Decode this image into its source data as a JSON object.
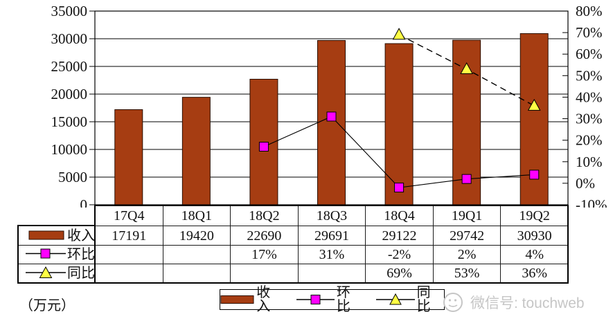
{
  "chart_data": {
    "type": "bar",
    "subtype": "bar-line-combo",
    "categories": [
      "17Q4",
      "18Q1",
      "18Q2",
      "18Q3",
      "18Q4",
      "19Q1",
      "19Q2"
    ],
    "series": [
      {
        "name": "收入",
        "type": "bar",
        "axis": "left",
        "color": "#A63D12",
        "values": [
          17191,
          19420,
          22690,
          29691,
          29122,
          29742,
          30930
        ]
      },
      {
        "name": "环比",
        "type": "line",
        "axis": "right",
        "marker": "square",
        "line_style": "solid",
        "color": "#FF00FF",
        "values": [
          null,
          null,
          17,
          31,
          -2,
          2,
          4
        ]
      },
      {
        "name": "同比",
        "type": "line",
        "axis": "right",
        "marker": "triangle",
        "line_style": "dashed",
        "color": "#FFFF44",
        "values": [
          null,
          null,
          null,
          null,
          69,
          53,
          36
        ]
      }
    ],
    "left_axis": {
      "min": 0,
      "max": 35000,
      "step": 5000,
      "tick_labels": [
        "35000",
        "30000",
        "25000",
        "20000",
        "15000",
        "10000",
        "5000",
        "0"
      ]
    },
    "right_axis": {
      "min": -10,
      "max": 80,
      "step": 10,
      "tick_labels": [
        "80%",
        "70%",
        "60%",
        "50%",
        "40%",
        "30%",
        "20%",
        "10%",
        "0%",
        "-10%"
      ]
    },
    "grid": "horizontal",
    "legend_position": "bottom",
    "unit_label": "（万元）",
    "title": ""
  },
  "table": {
    "header": [
      "17Q4",
      "18Q1",
      "18Q2",
      "18Q3",
      "18Q4",
      "19Q1",
      "19Q2"
    ],
    "rows": [
      {
        "key": "revenue",
        "label": "收入",
        "cells": [
          "17191",
          "19420",
          "22690",
          "29691",
          "29122",
          "29742",
          "30930"
        ]
      },
      {
        "key": "qoq",
        "label": "环比",
        "cells": [
          "",
          "",
          "17%",
          "31%",
          "-2%",
          "2%",
          "4%"
        ]
      },
      {
        "key": "yoy",
        "label": "同比",
        "cells": [
          "",
          "",
          "",
          "",
          "69%",
          "53%",
          "36%"
        ]
      }
    ]
  },
  "legend": {
    "revenue_label": "收入",
    "qoq_label": "环比",
    "yoy_label": "同比"
  },
  "watermark": {
    "text": "微信号: touchweb"
  },
  "colors": {
    "bar": "#A63D12",
    "bar_border": "#2a0e02",
    "qoq_marker": "#FF00FF",
    "yoy_marker": "#FFFF44",
    "line": "#000000",
    "watermark": "#c6c6c6"
  }
}
